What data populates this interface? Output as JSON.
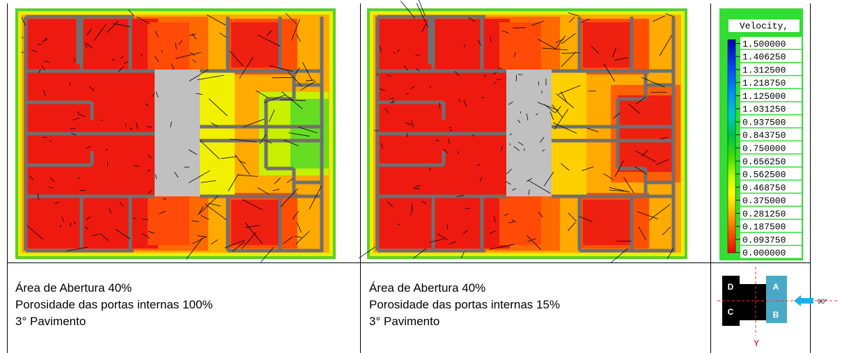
{
  "legend": {
    "title": "Velocity,",
    "values": [
      "1.500000",
      "1.406250",
      "1.312500",
      "1.218750",
      "1.125000",
      "1.031250",
      "0.937500",
      "0.843750",
      "0.750000",
      "0.656250",
      "0.562500",
      "0.468750",
      "0.375000",
      "0.281250",
      "0.187500",
      "0.093750",
      "0.000000"
    ]
  },
  "captions": [
    {
      "lines": [
        "Área de Abertura 40%",
        "Porosidade das portas internas 100%",
        "3° Pavimento"
      ]
    },
    {
      "lines": [
        "Área de Abertura 40%",
        "Porosidade das portas internas 15%",
        "3° Pavimento"
      ]
    }
  ],
  "diagram": {
    "labels": [
      "D",
      "C",
      "A",
      "B"
    ],
    "angle": "90°",
    "axis": "Y"
  }
}
